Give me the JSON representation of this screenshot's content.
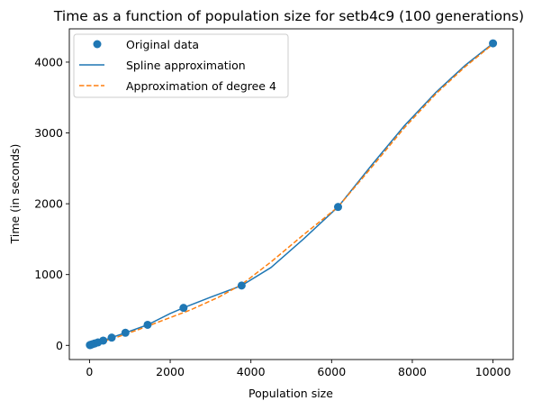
{
  "chart_data": {
    "type": "line",
    "title": "Time as a function of population size for setb4c9 (100 generations)",
    "xlabel": "Population size",
    "ylabel": "Time (in seconds)",
    "xlim": [
      -500,
      10500
    ],
    "ylim": [
      -200,
      4470
    ],
    "xticks": [
      0,
      2000,
      4000,
      6000,
      8000,
      10000
    ],
    "yticks": [
      0,
      1000,
      2000,
      3000,
      4000
    ],
    "grid": false,
    "legend_position": "upper-left",
    "colors": {
      "blue": "#1f77b4",
      "orange": "#ff7f0e"
    },
    "series": [
      {
        "name": "Original data",
        "kind": "scatter",
        "x": [
          10,
          20,
          40,
          80,
          130,
          210,
          340,
          550,
          890,
          1440,
          2330,
          3770,
          6160,
          10000
        ],
        "y": [
          4,
          6,
          10,
          18,
          27,
          42,
          68,
          110,
          178,
          290,
          530,
          845,
          1955,
          4265
        ]
      },
      {
        "name": "Spline approximation",
        "kind": "line",
        "x": [
          10,
          200,
          550,
          890,
          1440,
          2000,
          2330,
          3000,
          3770,
          4500,
          5300,
          6160,
          7000,
          7800,
          8600,
          9300,
          10000
        ],
        "y": [
          4,
          40,
          110,
          178,
          290,
          450,
          530,
          680,
          845,
          1100,
          1500,
          1955,
          2550,
          3100,
          3580,
          3950,
          4265
        ]
      },
      {
        "name": "Approximation of degree 4",
        "kind": "dashed",
        "x": [
          10,
          300,
          700,
          1200,
          1800,
          2500,
          3200,
          3770,
          4500,
          5300,
          6160,
          7000,
          7800,
          8600,
          9300,
          10000
        ],
        "y": [
          -5,
          50,
          120,
          220,
          350,
          500,
          680,
          860,
          1180,
          1560,
          1955,
          2520,
          3070,
          3560,
          3930,
          4255
        ]
      }
    ]
  }
}
